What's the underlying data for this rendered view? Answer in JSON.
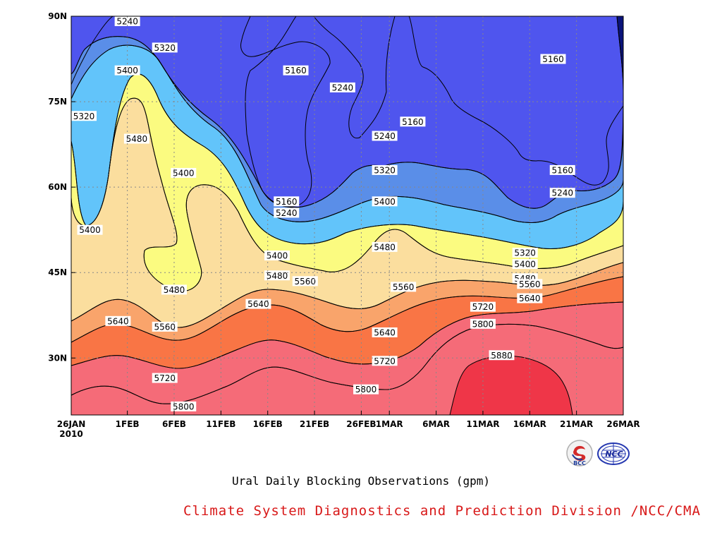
{
  "chart_data": {
    "type": "heatmap",
    "title": "Ural Daily Blocking Observations (gpm)",
    "credit": "Climate System Diagnostics and Prediction Division /NCC/CMA",
    "x_ticks": [
      "26JAN",
      "1FEB",
      "6FEB",
      "11FEB",
      "16FEB",
      "21FEB",
      "26FEB",
      "1MAR",
      "6MAR",
      "11MAR",
      "16MAR",
      "21MAR",
      "26MAR"
    ],
    "x_year": "2010",
    "x_tick_days": [
      0,
      6,
      11,
      16,
      21,
      26,
      31,
      34,
      39,
      44,
      49,
      54,
      59
    ],
    "y_ticks": [
      "30N",
      "45N",
      "60N",
      "75N",
      "90N"
    ],
    "y_tick_values": [
      30,
      45,
      60,
      75,
      90
    ],
    "ylim": [
      20,
      90
    ],
    "xlim_days": [
      0,
      59
    ],
    "contour_levels": [
      5160,
      5240,
      5320,
      5400,
      5480,
      5560,
      5640,
      5720,
      5800,
      5880
    ],
    "band_colors": [
      "#0a137a",
      "#1e2ee6",
      "#4f55ee",
      "#5a8ee8",
      "#62c4fa",
      "#fbfb80",
      "#fbde9e",
      "#f9a46b",
      "#f97545",
      "#f56b78",
      "#ef3648"
    ],
    "contour_labels": [
      {
        "v": "5240",
        "d": 6,
        "lat": 89.5
      },
      {
        "v": "5320",
        "d": 10,
        "lat": 84.5
      },
      {
        "v": "5400",
        "d": 6,
        "lat": 80.5
      },
      {
        "v": "5160",
        "d": 24,
        "lat": 80.5
      },
      {
        "v": "5240",
        "d": 29,
        "lat": 77.5
      },
      {
        "v": "5160",
        "d": 51.5,
        "lat": 82.5
      },
      {
        "v": "5320",
        "d": 1,
        "lat": 72.5
      },
      {
        "v": "5160",
        "d": 36.5,
        "lat": 71.5
      },
      {
        "v": "5240",
        "d": 33.5,
        "lat": 69
      },
      {
        "v": "5480",
        "d": 7,
        "lat": 68.5
      },
      {
        "v": "5400",
        "d": 12,
        "lat": 62.5
      },
      {
        "v": "5160",
        "d": 52.5,
        "lat": 63
      },
      {
        "v": "5320",
        "d": 33.5,
        "lat": 63
      },
      {
        "v": "5240",
        "d": 52.5,
        "lat": 59
      },
      {
        "v": "5160",
        "d": 23,
        "lat": 57.5
      },
      {
        "v": "5400",
        "d": 33.5,
        "lat": 57.5
      },
      {
        "v": "5240",
        "d": 23,
        "lat": 55.5
      },
      {
        "v": "5400",
        "d": 2,
        "lat": 52.5
      },
      {
        "v": "5480",
        "d": 33.5,
        "lat": 49.5
      },
      {
        "v": "5320",
        "d": 48.5,
        "lat": 48.5
      },
      {
        "v": "5400",
        "d": 22,
        "lat": 48
      },
      {
        "v": "5400",
        "d": 48.5,
        "lat": 46.5
      },
      {
        "v": "5480",
        "d": 22,
        "lat": 44.5
      },
      {
        "v": "5480",
        "d": 48.5,
        "lat": 44
      },
      {
        "v": "5560",
        "d": 25,
        "lat": 43.5
      },
      {
        "v": "5560",
        "d": 49,
        "lat": 43
      },
      {
        "v": "5480",
        "d": 11,
        "lat": 42
      },
      {
        "v": "5560",
        "d": 35.5,
        "lat": 42.5
      },
      {
        "v": "5640",
        "d": 49,
        "lat": 40.5
      },
      {
        "v": "5640",
        "d": 20,
        "lat": 39.5
      },
      {
        "v": "5720",
        "d": 44,
        "lat": 39
      },
      {
        "v": "5640",
        "d": 5,
        "lat": 36.5
      },
      {
        "v": "5800",
        "d": 44,
        "lat": 36
      },
      {
        "v": "5560",
        "d": 10,
        "lat": 35.5
      },
      {
        "v": "5640",
        "d": 33.5,
        "lat": 34.5
      },
      {
        "v": "5880",
        "d": 46,
        "lat": 30.5
      },
      {
        "v": "5720",
        "d": 33.5,
        "lat": 29.5
      },
      {
        "v": "5720",
        "d": 10,
        "lat": 26.5
      },
      {
        "v": "5800",
        "d": 31.5,
        "lat": 24.5
      },
      {
        "v": "5800",
        "d": 12,
        "lat": 21.5
      }
    ]
  },
  "logos": {
    "bcc_text": "BCC",
    "ncc_text": "NCC"
  }
}
